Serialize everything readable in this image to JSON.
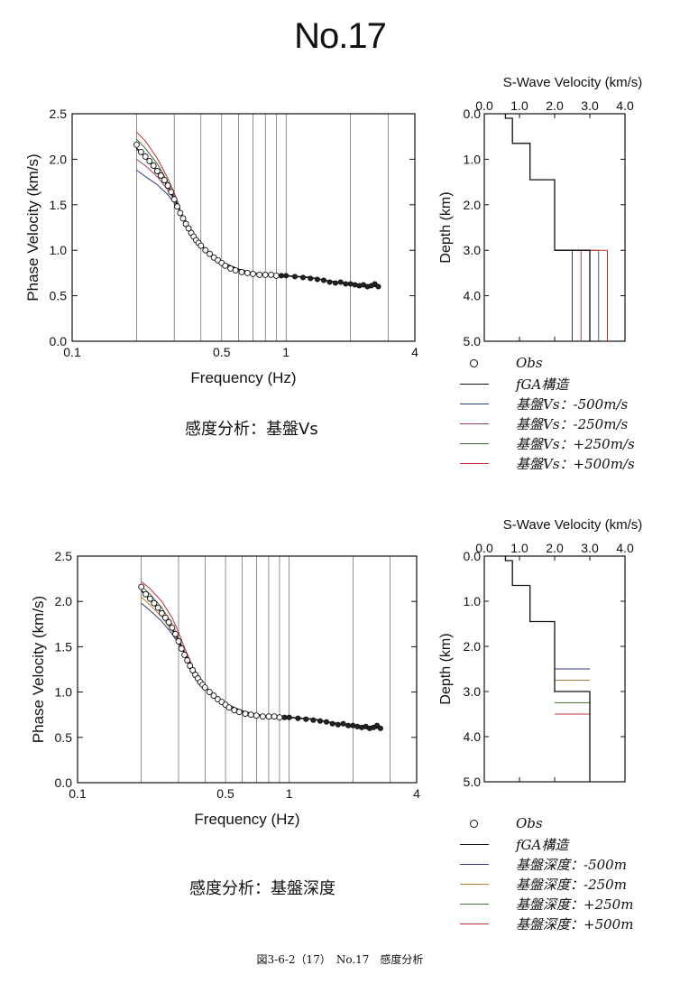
{
  "page_title": "No.17",
  "figure_caption": "図3-6-2（17）　No.17　感度分析",
  "sections": [
    {
      "caption": "感度分析：基盤Vs",
      "legend": [
        {
          "label": "Obs",
          "symbol": "circle",
          "color": "#111111"
        },
        {
          "label": "fGA構造",
          "symbol": "line",
          "color": "#111111"
        },
        {
          "label": "基盤Vs：-500m/s",
          "symbol": "line",
          "color": "#2a3a7a"
        },
        {
          "label": "基盤Vs：-250m/s",
          "symbol": "line",
          "color": "#a0406a"
        },
        {
          "label": "基盤Vs：+250m/s",
          "symbol": "line",
          "color": "#3c6a3c"
        },
        {
          "label": "基盤Vs：+500m/s",
          "symbol": "line",
          "color": "#c03030"
        }
      ]
    },
    {
      "caption": "感度分析：基盤深度",
      "legend": [
        {
          "label": "Obs",
          "symbol": "circle",
          "color": "#111111"
        },
        {
          "label": "fGA構造",
          "symbol": "line",
          "color": "#111111"
        },
        {
          "label": "基盤深度：-500m",
          "symbol": "line",
          "color": "#2a3a7a"
        },
        {
          "label": "基盤深度：-250m",
          "symbol": "line",
          "color": "#c07a40"
        },
        {
          "label": "基盤深度：+250m",
          "symbol": "line",
          "color": "#4a7a3a"
        },
        {
          "label": "基盤深度：+500m",
          "symbol": "line",
          "color": "#c03040"
        }
      ]
    }
  ],
  "chart_data": [
    {
      "type": "scatter",
      "name": "dispersion-vs",
      "xlabel": "Frequency (Hz)",
      "ylabel": "Phase Velocity (km/s)",
      "xscale": "log",
      "xlim": [
        0.1,
        4
      ],
      "ylim": [
        0,
        2.5
      ],
      "x_tick_labels": [
        {
          "v": 0.1,
          "t": "0.1"
        },
        {
          "v": 0.5,
          "t": "0.5"
        },
        {
          "v": 1,
          "t": "1"
        },
        {
          "v": 4,
          "t": "4"
        }
      ],
      "y_tick_labels": [
        "0.0",
        "0.5",
        "1.0",
        "1.5",
        "2.0",
        "2.5"
      ],
      "y_ticks": [
        0,
        0.5,
        1.0,
        1.5,
        2.0,
        2.5
      ],
      "grid": "vertical",
      "obs": {
        "x": [
          0.2,
          0.21,
          0.22,
          0.23,
          0.24,
          0.25,
          0.26,
          0.27,
          0.28,
          0.29,
          0.3,
          0.31,
          0.32,
          0.33,
          0.34,
          0.35,
          0.36,
          0.37,
          0.38,
          0.39,
          0.4,
          0.42,
          0.44,
          0.46,
          0.48,
          0.5,
          0.52,
          0.55,
          0.58,
          0.62,
          0.66,
          0.7,
          0.75,
          0.8,
          0.85,
          0.9,
          0.95,
          1.0,
          1.1,
          1.2,
          1.3,
          1.4,
          1.5,
          1.6,
          1.7,
          1.8,
          1.9,
          2.0,
          2.1,
          2.2,
          2.3,
          2.4,
          2.5,
          2.6,
          2.7
        ],
        "y": [
          2.16,
          2.08,
          2.03,
          1.98,
          1.93,
          1.87,
          1.82,
          1.77,
          1.71,
          1.64,
          1.56,
          1.48,
          1.41,
          1.35,
          1.29,
          1.24,
          1.19,
          1.15,
          1.11,
          1.08,
          1.05,
          1.0,
          0.96,
          0.92,
          0.89,
          0.86,
          0.83,
          0.8,
          0.78,
          0.76,
          0.75,
          0.74,
          0.73,
          0.73,
          0.73,
          0.72,
          0.72,
          0.72,
          0.71,
          0.7,
          0.69,
          0.68,
          0.67,
          0.65,
          0.64,
          0.65,
          0.63,
          0.63,
          0.62,
          0.61,
          0.62,
          0.6,
          0.61,
          0.63,
          0.6
        ]
      },
      "fga_curve": {
        "x": [
          0.2,
          0.22,
          0.25,
          0.28,
          0.3,
          0.32,
          0.35,
          0.38,
          0.4,
          0.45,
          0.5,
          0.6,
          0.7,
          0.8,
          1.0,
          1.3,
          1.6,
          2.0,
          2.4,
          2.7
        ],
        "y": [
          2.12,
          2.02,
          1.87,
          1.7,
          1.57,
          1.43,
          1.26,
          1.13,
          1.06,
          0.95,
          0.87,
          0.79,
          0.75,
          0.73,
          0.72,
          0.7,
          0.66,
          0.63,
          0.61,
          0.6
        ]
      },
      "sensitivity_low_freq": [
        {
          "x": [
            0.2,
            0.22,
            0.25,
            0.28,
            0.3,
            0.32
          ],
          "y": [
            1.88,
            1.81,
            1.72,
            1.61,
            1.52,
            1.43
          ]
        },
        {
          "x": [
            0.2,
            0.22,
            0.25,
            0.28,
            0.3,
            0.32
          ],
          "y": [
            2.0,
            1.93,
            1.81,
            1.66,
            1.55,
            1.43
          ]
        },
        {
          "x": [
            0.2,
            0.22,
            0.25,
            0.28,
            0.3,
            0.32
          ],
          "y": [
            2.22,
            2.12,
            1.95,
            1.75,
            1.6,
            1.45
          ]
        },
        {
          "x": [
            0.2,
            0.22,
            0.25,
            0.28,
            0.3,
            0.32
          ],
          "y": [
            2.3,
            2.2,
            2.01,
            1.79,
            1.63,
            1.46
          ]
        }
      ]
    },
    {
      "type": "line",
      "name": "profile-vs",
      "title": "S-Wave Velocity (km/s)",
      "xlabel": "S-Wave Velocity (km/s)",
      "ylabel": "Depth (km)",
      "xlim": [
        0,
        4
      ],
      "ylim": [
        5,
        0
      ],
      "x_tick_labels": [
        "0.0",
        "1.0",
        "2.0",
        "3.0",
        "4.0"
      ],
      "y_tick_labels": [
        "0.0",
        "1.0",
        "2.0",
        "3.0",
        "4.0",
        "5.0"
      ],
      "base_profile": {
        "x": [
          0.6,
          0.6,
          0.8,
          0.8,
          1.3,
          1.3,
          2.0,
          2.0,
          3.0,
          3.0
        ],
        "y": [
          0,
          0.1,
          0.1,
          0.65,
          0.65,
          1.45,
          1.45,
          3.0,
          3.0,
          5.0
        ]
      },
      "bedrock_variants": [
        {
          "vs": 2.5,
          "top_depth": 3.0,
          "color": "#2a3a7a"
        },
        {
          "vs": 2.75,
          "top_depth": 3.0,
          "color": "#a0406a"
        },
        {
          "vs": 3.25,
          "top_depth": 3.0,
          "color": "#3c6a3c"
        },
        {
          "vs": 3.5,
          "top_depth": 3.0,
          "color": "#c03030"
        }
      ]
    },
    {
      "type": "scatter",
      "name": "dispersion-depth",
      "xlabel": "Frequency (Hz)",
      "ylabel": "Phase Velocity (km/s)",
      "xscale": "log",
      "xlim": [
        0.1,
        4
      ],
      "ylim": [
        0,
        2.5
      ],
      "x_tick_labels": [
        {
          "v": 0.1,
          "t": "0.1"
        },
        {
          "v": 0.5,
          "t": "0.5"
        },
        {
          "v": 1,
          "t": "1"
        },
        {
          "v": 4,
          "t": "4"
        }
      ],
      "y_tick_labels": [
        "0.0",
        "0.5",
        "1.0",
        "1.5",
        "2.0",
        "2.5"
      ],
      "y_ticks": [
        0,
        0.5,
        1.0,
        1.5,
        2.0,
        2.5
      ],
      "grid": "vertical",
      "obs": {
        "x": [
          0.2,
          0.21,
          0.22,
          0.23,
          0.24,
          0.25,
          0.26,
          0.27,
          0.28,
          0.29,
          0.3,
          0.31,
          0.32,
          0.33,
          0.34,
          0.35,
          0.36,
          0.37,
          0.38,
          0.39,
          0.4,
          0.42,
          0.44,
          0.46,
          0.48,
          0.5,
          0.52,
          0.55,
          0.58,
          0.62,
          0.66,
          0.7,
          0.75,
          0.8,
          0.85,
          0.9,
          0.95,
          1.0,
          1.1,
          1.2,
          1.3,
          1.4,
          1.5,
          1.6,
          1.7,
          1.8,
          1.9,
          2.0,
          2.1,
          2.2,
          2.3,
          2.4,
          2.5,
          2.6,
          2.7
        ],
        "y": [
          2.16,
          2.08,
          2.03,
          1.98,
          1.93,
          1.87,
          1.82,
          1.77,
          1.71,
          1.64,
          1.56,
          1.48,
          1.41,
          1.35,
          1.29,
          1.24,
          1.19,
          1.15,
          1.11,
          1.08,
          1.05,
          1.0,
          0.96,
          0.92,
          0.89,
          0.86,
          0.83,
          0.8,
          0.78,
          0.76,
          0.75,
          0.74,
          0.73,
          0.73,
          0.73,
          0.72,
          0.72,
          0.72,
          0.71,
          0.7,
          0.69,
          0.68,
          0.67,
          0.65,
          0.64,
          0.65,
          0.63,
          0.63,
          0.62,
          0.61,
          0.62,
          0.6,
          0.61,
          0.63,
          0.6
        ]
      },
      "fga_curve": {
        "x": [
          0.2,
          0.22,
          0.25,
          0.28,
          0.3,
          0.32,
          0.35,
          0.38,
          0.4,
          0.45,
          0.5,
          0.6,
          0.7,
          0.8,
          1.0,
          1.3,
          1.6,
          2.0,
          2.4,
          2.7
        ],
        "y": [
          2.12,
          2.02,
          1.87,
          1.7,
          1.57,
          1.43,
          1.26,
          1.13,
          1.06,
          0.95,
          0.87,
          0.79,
          0.75,
          0.73,
          0.72,
          0.7,
          0.66,
          0.63,
          0.61,
          0.6
        ]
      },
      "sensitivity_low_freq": [
        {
          "x": [
            0.2,
            0.22,
            0.25,
            0.28,
            0.3,
            0.32,
            0.35,
            0.38
          ],
          "y": [
            1.98,
            1.9,
            1.78,
            1.64,
            1.53,
            1.42,
            1.27,
            1.15
          ]
        },
        {
          "x": [
            0.2,
            0.22,
            0.25,
            0.28,
            0.3,
            0.32,
            0.35,
            0.38
          ],
          "y": [
            2.05,
            1.96,
            1.83,
            1.67,
            1.55,
            1.43,
            1.27,
            1.14
          ]
        },
        {
          "x": [
            0.2,
            0.22,
            0.25,
            0.28,
            0.3,
            0.32,
            0.35,
            0.38
          ],
          "y": [
            2.17,
            2.08,
            1.93,
            1.75,
            1.6,
            1.45,
            1.27,
            1.13
          ]
        },
        {
          "x": [
            0.2,
            0.22,
            0.25,
            0.28,
            0.3,
            0.32,
            0.35,
            0.38
          ],
          "y": [
            2.22,
            2.14,
            2.0,
            1.82,
            1.66,
            1.49,
            1.28,
            1.12
          ]
        }
      ]
    },
    {
      "type": "line",
      "name": "profile-depth",
      "title": "S-Wave Velocity (km/s)",
      "xlabel": "S-Wave Velocity (km/s)",
      "ylabel": "Depth (km)",
      "xlim": [
        0,
        4
      ],
      "ylim": [
        5,
        0
      ],
      "x_tick_labels": [
        "0.0",
        "1.0",
        "2.0",
        "3.0",
        "4.0"
      ],
      "y_tick_labels": [
        "0.0",
        "1.0",
        "2.0",
        "3.0",
        "4.0",
        "5.0"
      ],
      "base_profile": {
        "x": [
          0.6,
          0.6,
          0.8,
          0.8,
          1.3,
          1.3,
          2.0,
          2.0,
          3.0,
          3.0
        ],
        "y": [
          0,
          0.1,
          0.1,
          0.65,
          0.65,
          1.45,
          1.45,
          3.0,
          3.0,
          5.0
        ]
      },
      "bedrock_depth_variants": [
        {
          "depth": 2.5,
          "color": "#2a3a7a"
        },
        {
          "depth": 2.75,
          "color": "#c07a40"
        },
        {
          "depth": 3.25,
          "color": "#4a7a3a"
        },
        {
          "depth": 3.5,
          "color": "#c03040"
        }
      ]
    }
  ]
}
